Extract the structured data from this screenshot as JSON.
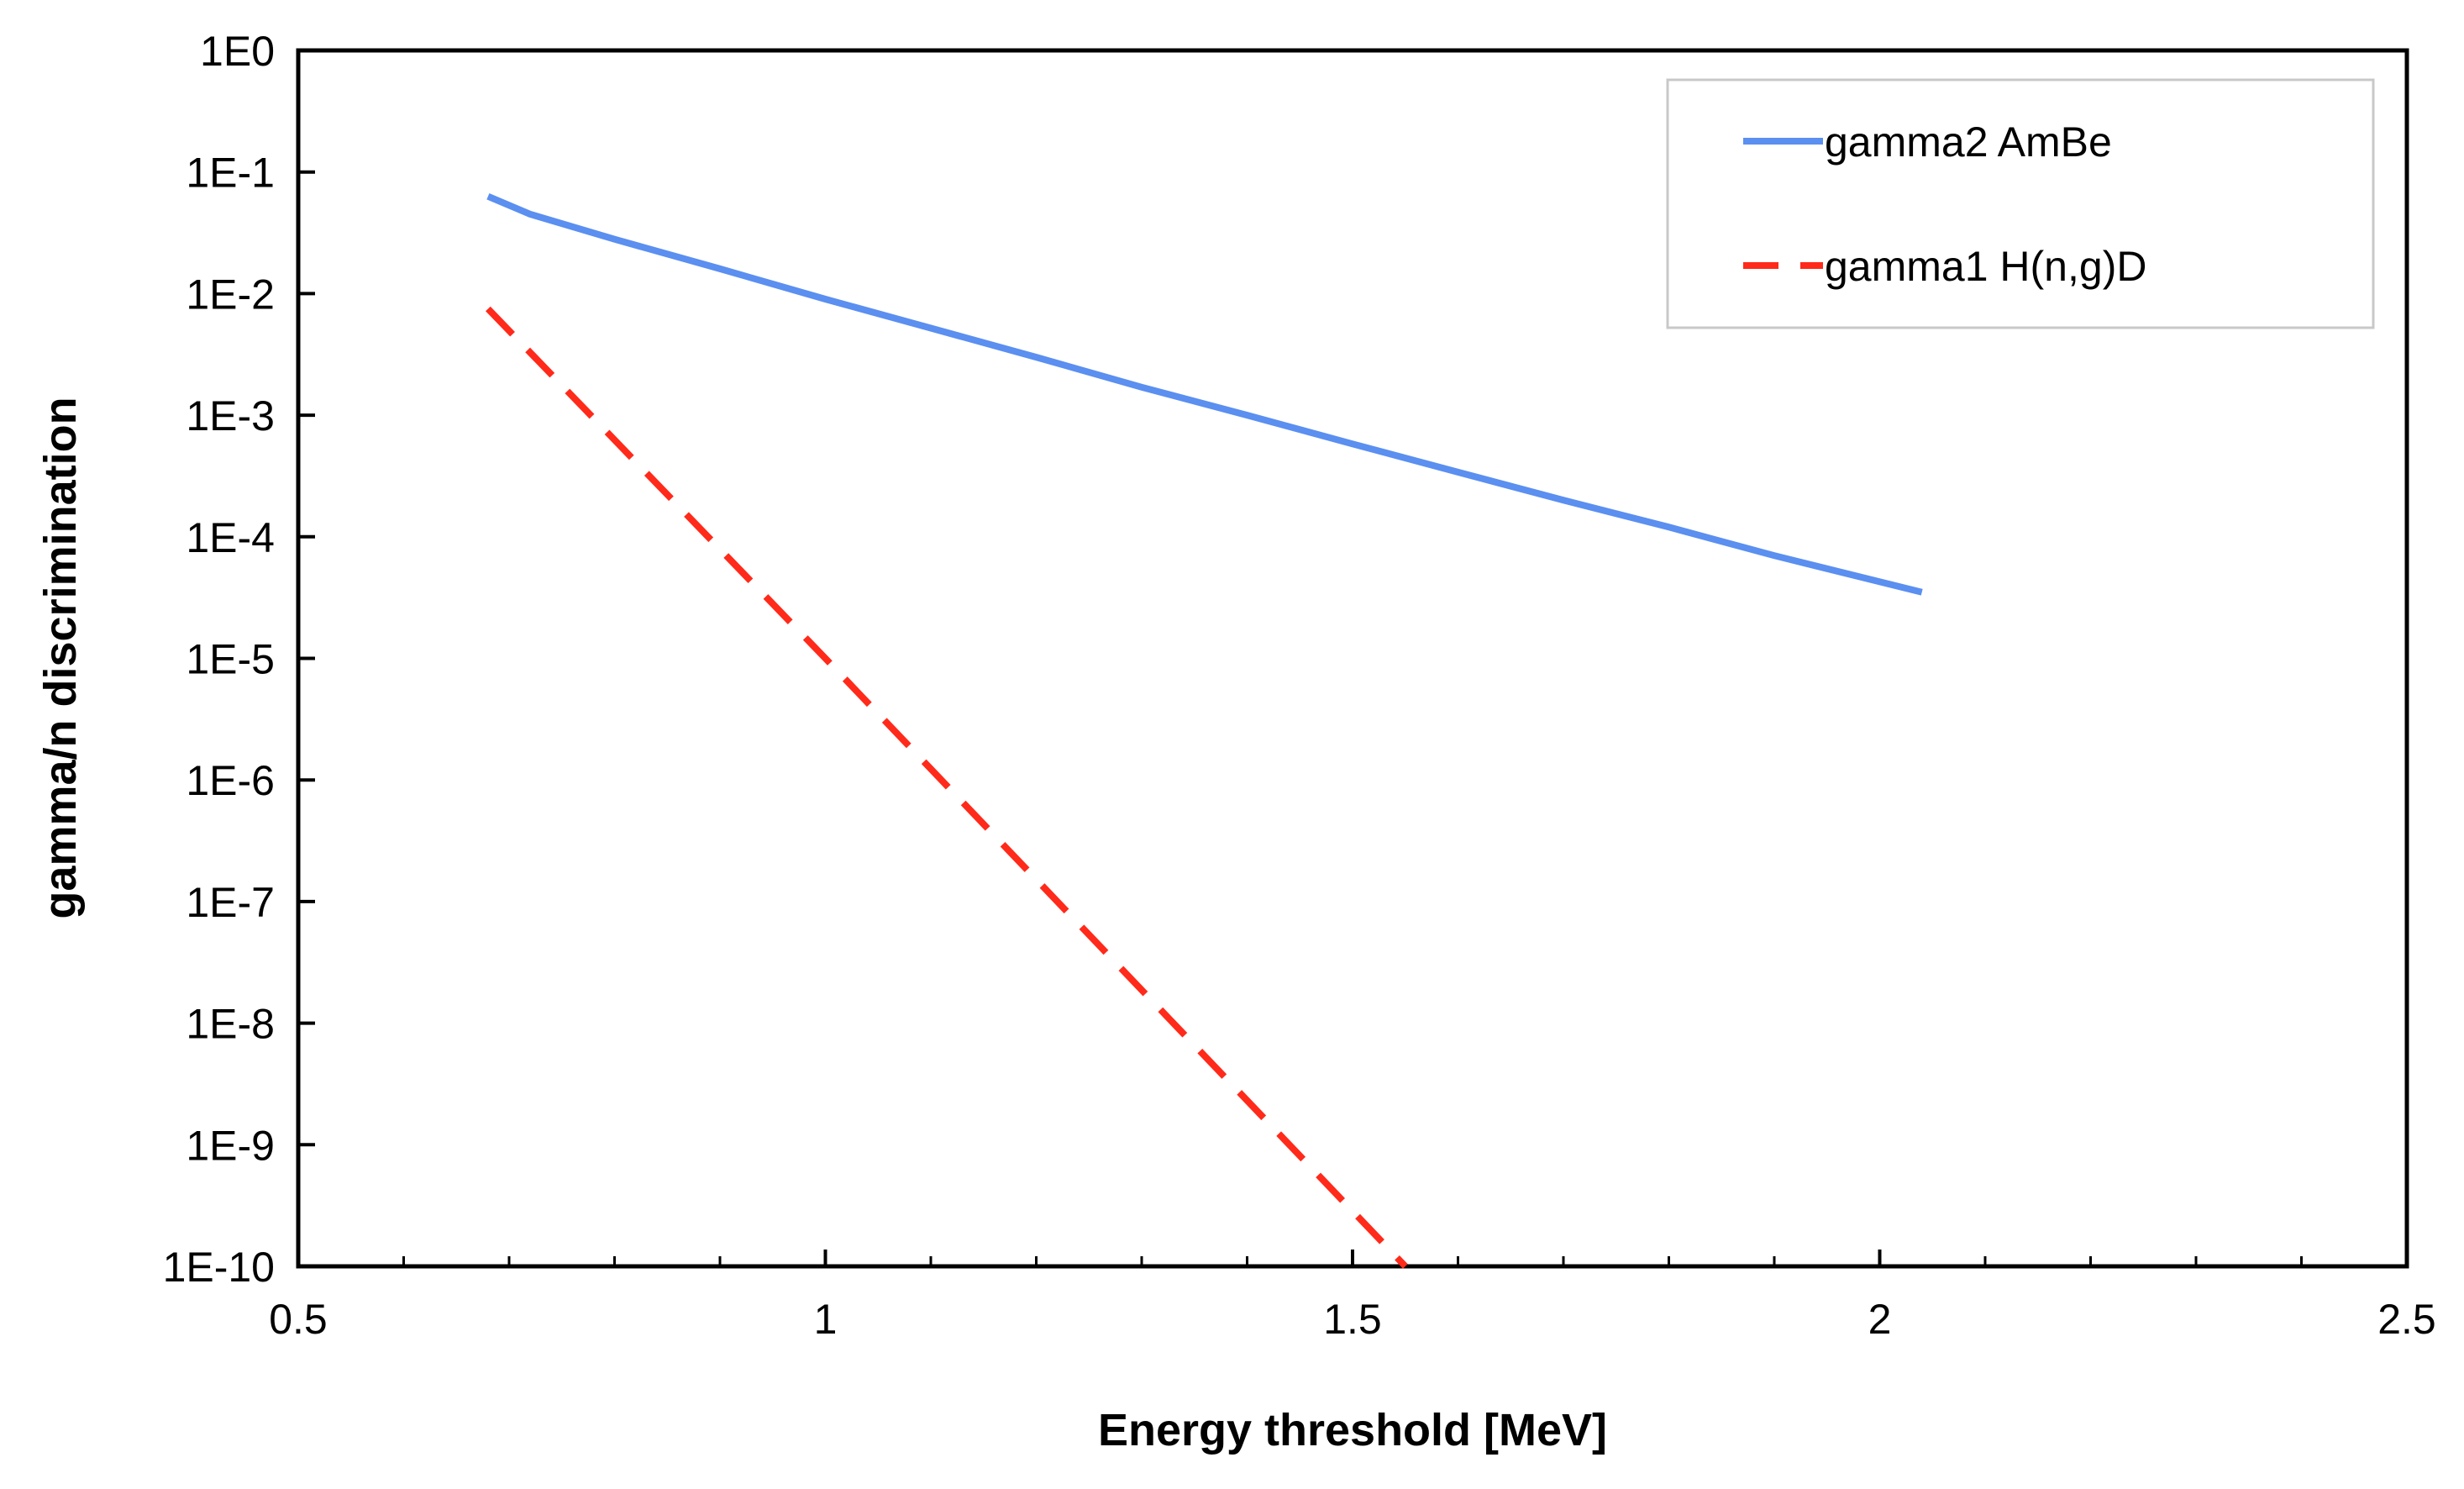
{
  "chart_data": {
    "type": "line",
    "title": "",
    "xlabel": "Energy threshold [MeV]",
    "ylabel": "gamma/n discrimination",
    "xlim": [
      0.5,
      2.5
    ],
    "ylim_log10": [
      -10,
      0
    ],
    "y_scale": "log",
    "grid": false,
    "legend_position": "top-right",
    "x_ticks": [
      {
        "value": 0.5,
        "label": "0.5"
      },
      {
        "value": 1,
        "label": "1"
      },
      {
        "value": 1.5,
        "label": "1.5"
      },
      {
        "value": 2,
        "label": "2"
      },
      {
        "value": 2.5,
        "label": "2.5"
      }
    ],
    "x_minor_ticks": [
      0.6,
      0.7,
      0.8,
      0.9,
      1.1,
      1.2,
      1.3,
      1.4,
      1.6,
      1.7,
      1.8,
      1.9,
      2.1,
      2.2,
      2.3,
      2.4
    ],
    "y_ticks": [
      {
        "exp": 0,
        "label": "1E0"
      },
      {
        "exp": -1,
        "label": "1E-1"
      },
      {
        "exp": -2,
        "label": "1E-2"
      },
      {
        "exp": -3,
        "label": "1E-3"
      },
      {
        "exp": -4,
        "label": "1E-4"
      },
      {
        "exp": -5,
        "label": "1E-5"
      },
      {
        "exp": -6,
        "label": "1E-6"
      },
      {
        "exp": -7,
        "label": "1E-7"
      },
      {
        "exp": -8,
        "label": "1E-8"
      },
      {
        "exp": -9,
        "label": "1E-9"
      },
      {
        "exp": -10,
        "label": "1E-10"
      }
    ],
    "series": [
      {
        "name": "gamma2 AmBe",
        "color": "#5b8ff0",
        "dash": "solid",
        "x": [
          0.68,
          0.72,
          0.8,
          0.9,
          1.0,
          1.1,
          1.2,
          1.3,
          1.4,
          1.5,
          1.6,
          1.7,
          1.8,
          1.9,
          2.04
        ],
        "y": [
          0.063,
          0.045,
          0.028,
          0.016,
          0.009,
          0.0052,
          0.003,
          0.0017,
          0.001,
          0.00058,
          0.00034,
          0.0002,
          0.00012,
          7e-05,
          3.5e-05
        ]
      },
      {
        "name": "gamma1 H(n,g)D",
        "color": "#ff2a1a",
        "dash": "dashed",
        "x": [
          0.68,
          1.0,
          1.55
        ],
        "y": [
          0.0075,
          1e-05,
          1e-10
        ]
      }
    ]
  }
}
